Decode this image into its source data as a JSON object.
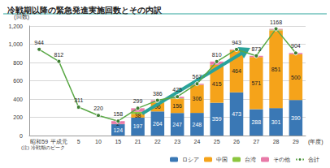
{
  "chart_data": {
    "type": "bar",
    "title": "冷戦期以降の緊急発進実施回数とその内訳",
    "y_label": "(回数)",
    "x_label": "(年度)",
    "annotation": "(注) 冷戦期のピーク",
    "stacked": true,
    "grid": true,
    "legend": "bottom-right",
    "categories": [
      "昭和59",
      "平成元",
      "5",
      "10",
      "15",
      "21",
      "22",
      "23",
      "24",
      "25",
      "26",
      "27",
      "28",
      "29"
    ],
    "ylim": [
      0,
      1200
    ],
    "yticks": [
      0,
      200,
      400,
      600,
      800,
      {
        "value": 1000,
        "label": "1,000"
      },
      {
        "value": 1200,
        "label": "1,200"
      }
    ],
    "series": [
      {
        "name": "ロシア",
        "type": "bar",
        "color": "#3a78b5",
        "data_labels": true,
        "values": [
          null,
          null,
          null,
          null,
          124,
          197,
          264,
          247,
          248,
          359,
          473,
          288,
          301,
          390
        ]
      },
      {
        "name": "中国",
        "type": "bar",
        "color": "#f5a31a",
        "data_labels": true,
        "values": [
          null,
          null,
          null,
          null,
          2,
          38,
          96,
          156,
          306,
          415,
          464,
          571,
          851,
          500
        ]
      },
      {
        "name": "台湾",
        "type": "bar",
        "color": "#8cc63f",
        "data_labels": false,
        "values": [
          null,
          null,
          null,
          null,
          0,
          25,
          7,
          5,
          1,
          1,
          1,
          0,
          8,
          0
        ]
      },
      {
        "name": "その他",
        "type": "bar",
        "color": "#e87aa8",
        "data_labels": false,
        "values": [
          null,
          null,
          null,
          null,
          32,
          39,
          19,
          17,
          12,
          35,
          5,
          14,
          8,
          14
        ]
      },
      {
        "name": "合計",
        "type": "line",
        "color": "#5aa846",
        "marker": "circle",
        "line_style": "solid",
        "data_labels": true,
        "values": [
          944,
          812,
          311,
          220,
          158,
          299,
          386,
          425,
          567,
          810,
          943,
          873,
          1168,
          904
        ]
      }
    ]
  }
}
